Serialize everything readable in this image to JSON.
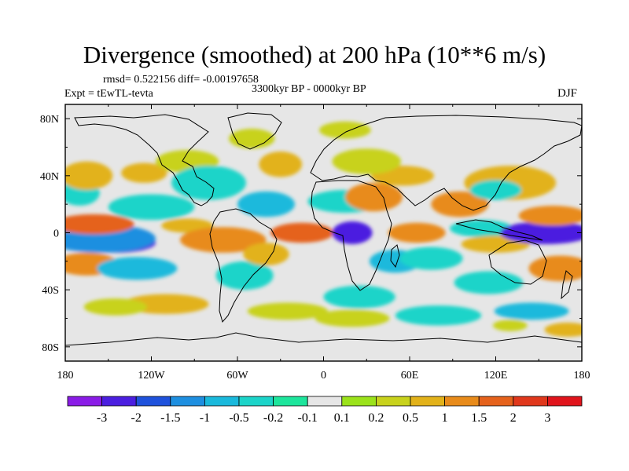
{
  "chart_data": {
    "type": "heatmap",
    "title": "Divergence (smoothed) at 200 hPa (10**6 m/s)",
    "stats": "rmsd= 0.522156 diff= -0.00197658",
    "experiment": "Expt = tEwTL-tevta",
    "period": "3300kyr BP - 0000kyr BP",
    "season": "DJF",
    "xlim": [
      -180,
      180
    ],
    "ylim": [
      -90,
      90
    ],
    "x_ticks": [
      {
        "value": -180,
        "label": "180"
      },
      {
        "value": -120,
        "label": "120W"
      },
      {
        "value": -60,
        "label": "60W"
      },
      {
        "value": 0,
        "label": "0"
      },
      {
        "value": 60,
        "label": "60E"
      },
      {
        "value": 120,
        "label": "120E"
      },
      {
        "value": 180,
        "label": "180"
      }
    ],
    "y_ticks": [
      {
        "value": 80,
        "label": "80N"
      },
      {
        "value": 40,
        "label": "40N"
      },
      {
        "value": 0,
        "label": "0"
      },
      {
        "value": -40,
        "label": "40S"
      },
      {
        "value": -80,
        "label": "80S"
      }
    ],
    "levels": [
      "-3",
      "-2",
      "-1.5",
      "-1",
      "-0.5",
      "-0.2",
      "-0.1",
      "0.1",
      "0.2",
      "0.5",
      "1",
      "1.5",
      "2",
      "3"
    ],
    "level_values": [
      -3,
      -2,
      -1.5,
      -1,
      -0.5,
      -0.2,
      -0.1,
      0.1,
      0.2,
      0.5,
      1,
      1.5,
      2,
      3
    ],
    "colors": [
      "#8a1ce6",
      "#4b1fe0",
      "#1f52dc",
      "#1e8fe0",
      "#1ab9dc",
      "#1cd4c9",
      "#1de59c",
      "#e6e6e6",
      "#9be21b",
      "#c8d21c",
      "#e2b21a",
      "#e88b1b",
      "#e5621c",
      "#e0381c",
      "#e0141c"
    ],
    "background_color": "#e6e6e6",
    "features": [
      {
        "lon": -145,
        "lat": -7,
        "w": 28,
        "h": 7,
        "value": -3.0
      },
      {
        "lon": -155,
        "lat": -4,
        "w": 38,
        "h": 10,
        "value": -1.4
      },
      {
        "lon": -160,
        "lat": 6,
        "w": 28,
        "h": 7,
        "value": 1.6
      },
      {
        "lon": -165,
        "lat": -22,
        "w": 22,
        "h": 8,
        "value": 1.2
      },
      {
        "lon": -130,
        "lat": -25,
        "w": 28,
        "h": 8,
        "value": -0.6
      },
      {
        "lon": -120,
        "lat": 18,
        "w": 30,
        "h": 9,
        "value": -0.5
      },
      {
        "lon": -170,
        "lat": 28,
        "w": 14,
        "h": 9,
        "value": -0.4
      },
      {
        "lon": -165,
        "lat": 40,
        "w": 18,
        "h": 10,
        "value": 0.8
      },
      {
        "lon": -125,
        "lat": 42,
        "w": 16,
        "h": 7,
        "value": 0.7
      },
      {
        "lon": -95,
        "lat": 50,
        "w": 22,
        "h": 8,
        "value": 0.4
      },
      {
        "lon": -80,
        "lat": 35,
        "w": 26,
        "h": 12,
        "value": -0.5
      },
      {
        "lon": -95,
        "lat": 5,
        "w": 18,
        "h": 5,
        "value": 0.5
      },
      {
        "lon": -70,
        "lat": -5,
        "w": 30,
        "h": 9,
        "value": 1.3
      },
      {
        "lon": -55,
        "lat": -30,
        "w": 20,
        "h": 10,
        "value": -0.5
      },
      {
        "lon": -40,
        "lat": -15,
        "w": 16,
        "h": 8,
        "value": 0.9
      },
      {
        "lon": -40,
        "lat": 20,
        "w": 20,
        "h": 9,
        "value": -0.6
      },
      {
        "lon": -30,
        "lat": 48,
        "w": 15,
        "h": 9,
        "value": 0.5
      },
      {
        "lon": -50,
        "lat": 66,
        "w": 16,
        "h": 7,
        "value": 0.3
      },
      {
        "lon": -15,
        "lat": 0,
        "w": 22,
        "h": 7,
        "value": 1.6
      },
      {
        "lon": 20,
        "lat": 0,
        "w": 14,
        "h": 8,
        "value": -2.2
      },
      {
        "lon": 15,
        "lat": 22,
        "w": 26,
        "h": 8,
        "value": -0.5
      },
      {
        "lon": 35,
        "lat": 25,
        "w": 20,
        "h": 10,
        "value": 1.0
      },
      {
        "lon": 55,
        "lat": 40,
        "w": 22,
        "h": 7,
        "value": 0.9
      },
      {
        "lon": 30,
        "lat": 50,
        "w": 24,
        "h": 9,
        "value": 0.4
      },
      {
        "lon": 15,
        "lat": 72,
        "w": 18,
        "h": 6,
        "value": 0.3
      },
      {
        "lon": 25,
        "lat": -45,
        "w": 25,
        "h": 8,
        "value": -0.4
      },
      {
        "lon": 50,
        "lat": -20,
        "w": 18,
        "h": 8,
        "value": -0.6
      },
      {
        "lon": 65,
        "lat": 0,
        "w": 20,
        "h": 7,
        "value": 1.2
      },
      {
        "lon": 75,
        "lat": -18,
        "w": 22,
        "h": 8,
        "value": -0.5
      },
      {
        "lon": 95,
        "lat": 20,
        "w": 20,
        "h": 9,
        "value": 1.0
      },
      {
        "lon": 110,
        "lat": 3,
        "w": 22,
        "h": 6,
        "value": -0.5
      },
      {
        "lon": 120,
        "lat": -8,
        "w": 24,
        "h": 6,
        "value": 0.9
      },
      {
        "lon": 155,
        "lat": 0,
        "w": 32,
        "h": 8,
        "value": -2.3
      },
      {
        "lon": 160,
        "lat": 12,
        "w": 24,
        "h": 7,
        "value": 1.0
      },
      {
        "lon": 130,
        "lat": 35,
        "w": 32,
        "h": 12,
        "value": 0.8
      },
      {
        "lon": 120,
        "lat": 30,
        "w": 18,
        "h": 7,
        "value": -0.4
      },
      {
        "lon": 165,
        "lat": -25,
        "w": 22,
        "h": 9,
        "value": 1.0
      },
      {
        "lon": 115,
        "lat": -35,
        "w": 24,
        "h": 8,
        "value": -0.5
      },
      {
        "lon": 145,
        "lat": -55,
        "w": 26,
        "h": 6,
        "value": -0.6
      },
      {
        "lon": 130,
        "lat": -65,
        "w": 12,
        "h": 4,
        "value": 0.4
      },
      {
        "lon": 80,
        "lat": -58,
        "w": 30,
        "h": 7,
        "value": -0.4
      },
      {
        "lon": -25,
        "lat": -55,
        "w": 28,
        "h": 6,
        "value": 0.2
      },
      {
        "lon": -110,
        "lat": -50,
        "w": 30,
        "h": 7,
        "value": 0.6
      },
      {
        "lon": -145,
        "lat": -52,
        "w": 22,
        "h": 6,
        "value": 0.3
      },
      {
        "lon": 20,
        "lat": -60,
        "w": 26,
        "h": 6,
        "value": 0.25
      },
      {
        "lon": 170,
        "lat": -68,
        "w": 16,
        "h": 5,
        "value": 0.6
      }
    ]
  }
}
